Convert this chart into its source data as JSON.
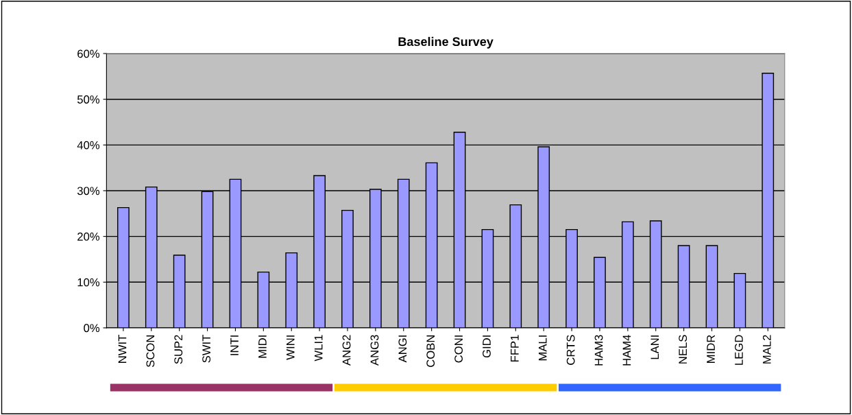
{
  "chart_data": {
    "type": "bar",
    "title": "Baseline Survey",
    "categories": [
      "NWIT",
      "SCON",
      "SUP2",
      "SWIT",
      "INTI",
      "MIDI",
      "WINI",
      "WLI1",
      "ANG2",
      "ANG3",
      "ANGI",
      "COBN",
      "CONI",
      "GIDI",
      "FFP1",
      "MALI",
      "CRTS",
      "HAM3",
      "HAM4",
      "LANI",
      "NELS",
      "MIDR",
      "LEGD",
      "MAL2"
    ],
    "values": [
      26.3,
      30.8,
      15.9,
      29.8,
      32.5,
      12.2,
      16.4,
      33.3,
      25.7,
      30.3,
      32.5,
      36.1,
      42.8,
      21.5,
      26.9,
      39.6,
      21.5,
      15.4,
      23.2,
      23.4,
      18.0,
      18.0,
      11.9,
      55.7
    ],
    "color": "#9999ff",
    "ylim": [
      0,
      60
    ],
    "yticks": [
      {
        "value": 0,
        "label": "0%"
      },
      {
        "value": 10,
        "label": "10%"
      },
      {
        "value": 20,
        "label": "20%"
      },
      {
        "value": 30,
        "label": "30%"
      },
      {
        "value": 40,
        "label": "40%"
      },
      {
        "value": 50,
        "label": "50%"
      },
      {
        "value": 60,
        "label": "60%"
      }
    ],
    "grid": "y",
    "legend": false
  }
}
